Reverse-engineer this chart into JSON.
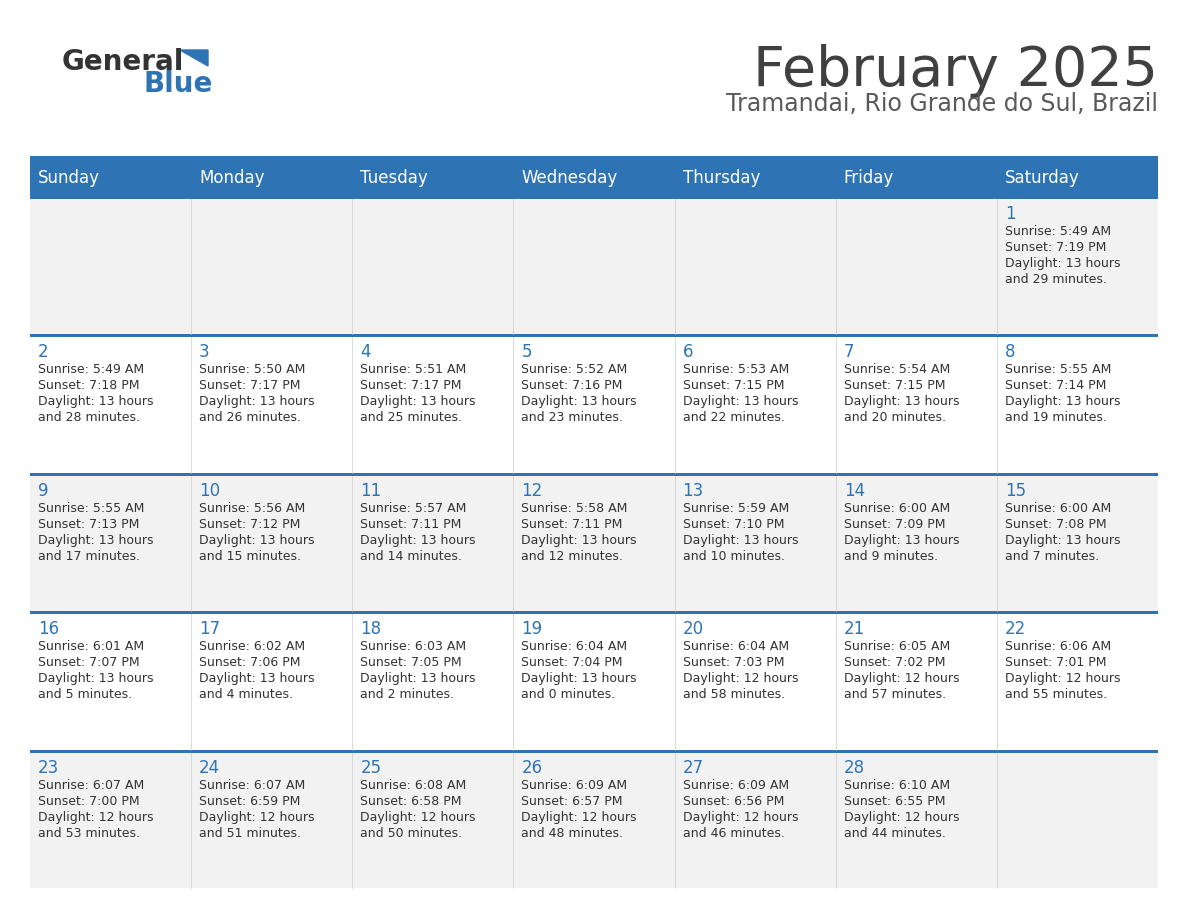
{
  "title": "February 2025",
  "subtitle": "Tramandai, Rio Grande do Sul, Brazil",
  "header_bg": "#2E74B5",
  "header_text": "#FFFFFF",
  "row_bg_alt": "#F2F2F2",
  "row_bg_white": "#FFFFFF",
  "separator_color": "#2E74B5",
  "day_headers": [
    "Sunday",
    "Monday",
    "Tuesday",
    "Wednesday",
    "Thursday",
    "Friday",
    "Saturday"
  ],
  "title_color": "#404040",
  "subtitle_color": "#595959",
  "cell_text_color": "#333333",
  "day_num_color": "#2E74B5",
  "calendar": [
    [
      null,
      null,
      null,
      null,
      null,
      null,
      {
        "day": "1",
        "sunrise": "5:49 AM",
        "sunset": "7:19 PM",
        "daylight_h": "13 hours",
        "daylight_m": "29 minutes"
      }
    ],
    [
      {
        "day": "2",
        "sunrise": "5:49 AM",
        "sunset": "7:18 PM",
        "daylight_h": "13 hours",
        "daylight_m": "28 minutes"
      },
      {
        "day": "3",
        "sunrise": "5:50 AM",
        "sunset": "7:17 PM",
        "daylight_h": "13 hours",
        "daylight_m": "26 minutes"
      },
      {
        "day": "4",
        "sunrise": "5:51 AM",
        "sunset": "7:17 PM",
        "daylight_h": "13 hours",
        "daylight_m": "25 minutes"
      },
      {
        "day": "5",
        "sunrise": "5:52 AM",
        "sunset": "7:16 PM",
        "daylight_h": "13 hours",
        "daylight_m": "23 minutes"
      },
      {
        "day": "6",
        "sunrise": "5:53 AM",
        "sunset": "7:15 PM",
        "daylight_h": "13 hours",
        "daylight_m": "22 minutes"
      },
      {
        "day": "7",
        "sunrise": "5:54 AM",
        "sunset": "7:15 PM",
        "daylight_h": "13 hours",
        "daylight_m": "20 minutes"
      },
      {
        "day": "8",
        "sunrise": "5:55 AM",
        "sunset": "7:14 PM",
        "daylight_h": "13 hours",
        "daylight_m": "19 minutes"
      }
    ],
    [
      {
        "day": "9",
        "sunrise": "5:55 AM",
        "sunset": "7:13 PM",
        "daylight_h": "13 hours",
        "daylight_m": "17 minutes"
      },
      {
        "day": "10",
        "sunrise": "5:56 AM",
        "sunset": "7:12 PM",
        "daylight_h": "13 hours",
        "daylight_m": "15 minutes"
      },
      {
        "day": "11",
        "sunrise": "5:57 AM",
        "sunset": "7:11 PM",
        "daylight_h": "13 hours",
        "daylight_m": "14 minutes"
      },
      {
        "day": "12",
        "sunrise": "5:58 AM",
        "sunset": "7:11 PM",
        "daylight_h": "13 hours",
        "daylight_m": "12 minutes"
      },
      {
        "day": "13",
        "sunrise": "5:59 AM",
        "sunset": "7:10 PM",
        "daylight_h": "13 hours",
        "daylight_m": "10 minutes"
      },
      {
        "day": "14",
        "sunrise": "6:00 AM",
        "sunset": "7:09 PM",
        "daylight_h": "13 hours",
        "daylight_m": "9 minutes"
      },
      {
        "day": "15",
        "sunrise": "6:00 AM",
        "sunset": "7:08 PM",
        "daylight_h": "13 hours",
        "daylight_m": "7 minutes"
      }
    ],
    [
      {
        "day": "16",
        "sunrise": "6:01 AM",
        "sunset": "7:07 PM",
        "daylight_h": "13 hours",
        "daylight_m": "5 minutes"
      },
      {
        "day": "17",
        "sunrise": "6:02 AM",
        "sunset": "7:06 PM",
        "daylight_h": "13 hours",
        "daylight_m": "4 minutes"
      },
      {
        "day": "18",
        "sunrise": "6:03 AM",
        "sunset": "7:05 PM",
        "daylight_h": "13 hours",
        "daylight_m": "2 minutes"
      },
      {
        "day": "19",
        "sunrise": "6:04 AM",
        "sunset": "7:04 PM",
        "daylight_h": "13 hours",
        "daylight_m": "0 minutes"
      },
      {
        "day": "20",
        "sunrise": "6:04 AM",
        "sunset": "7:03 PM",
        "daylight_h": "12 hours",
        "daylight_m": "58 minutes"
      },
      {
        "day": "21",
        "sunrise": "6:05 AM",
        "sunset": "7:02 PM",
        "daylight_h": "12 hours",
        "daylight_m": "57 minutes"
      },
      {
        "day": "22",
        "sunrise": "6:06 AM",
        "sunset": "7:01 PM",
        "daylight_h": "12 hours",
        "daylight_m": "55 minutes"
      }
    ],
    [
      {
        "day": "23",
        "sunrise": "6:07 AM",
        "sunset": "7:00 PM",
        "daylight_h": "12 hours",
        "daylight_m": "53 minutes"
      },
      {
        "day": "24",
        "sunrise": "6:07 AM",
        "sunset": "6:59 PM",
        "daylight_h": "12 hours",
        "daylight_m": "51 minutes"
      },
      {
        "day": "25",
        "sunrise": "6:08 AM",
        "sunset": "6:58 PM",
        "daylight_h": "12 hours",
        "daylight_m": "50 minutes"
      },
      {
        "day": "26",
        "sunrise": "6:09 AM",
        "sunset": "6:57 PM",
        "daylight_h": "12 hours",
        "daylight_m": "48 minutes"
      },
      {
        "day": "27",
        "sunrise": "6:09 AM",
        "sunset": "6:56 PM",
        "daylight_h": "12 hours",
        "daylight_m": "46 minutes"
      },
      {
        "day": "28",
        "sunrise": "6:10 AM",
        "sunset": "6:55 PM",
        "daylight_h": "12 hours",
        "daylight_m": "44 minutes"
      },
      null
    ]
  ]
}
